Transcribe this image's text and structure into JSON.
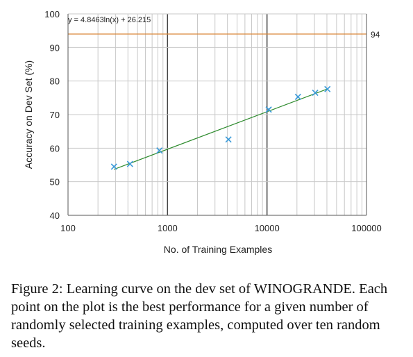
{
  "chart_data": {
    "type": "scatter",
    "xscale": "log",
    "xlabel": "No. of Training Examples",
    "ylabel": "Accuracy on Dev Set (%)",
    "xlim": [
      100,
      100000
    ],
    "ylim": [
      40,
      100
    ],
    "x_ticks": [
      "100",
      "1000",
      "10000",
      "100000"
    ],
    "y_ticks": [
      "40",
      "50",
      "60",
      "70",
      "80",
      "90",
      "100"
    ],
    "grid": true,
    "points": [
      {
        "x": 290,
        "y": 54.5
      },
      {
        "x": 420,
        "y": 55.3
      },
      {
        "x": 830,
        "y": 59.3
      },
      {
        "x": 4100,
        "y": 62.6
      },
      {
        "x": 10400,
        "y": 71.5
      },
      {
        "x": 20500,
        "y": 75.3
      },
      {
        "x": 30500,
        "y": 76.5
      },
      {
        "x": 40500,
        "y": 77.6
      }
    ],
    "trendline": {
      "equation": "y = 4.8463ln(x) + 26.215",
      "a": 4.8463,
      "b": 26.215,
      "x_from": 290,
      "x_to": 40500
    },
    "reference_line": {
      "y": 94,
      "label": "94"
    },
    "colors": {
      "points": "#3a9ad9",
      "trendline": "#2e8b2e",
      "reference": "#d9883a",
      "grid_minor": "#c8c8c8",
      "grid_major": "#444444"
    }
  },
  "caption": {
    "text": "Figure 2: Learning curve on the dev set of WINOGRANDE. Each point on the plot is the best performance for a given number of randomly selected training examples, computed over ten random seeds."
  }
}
